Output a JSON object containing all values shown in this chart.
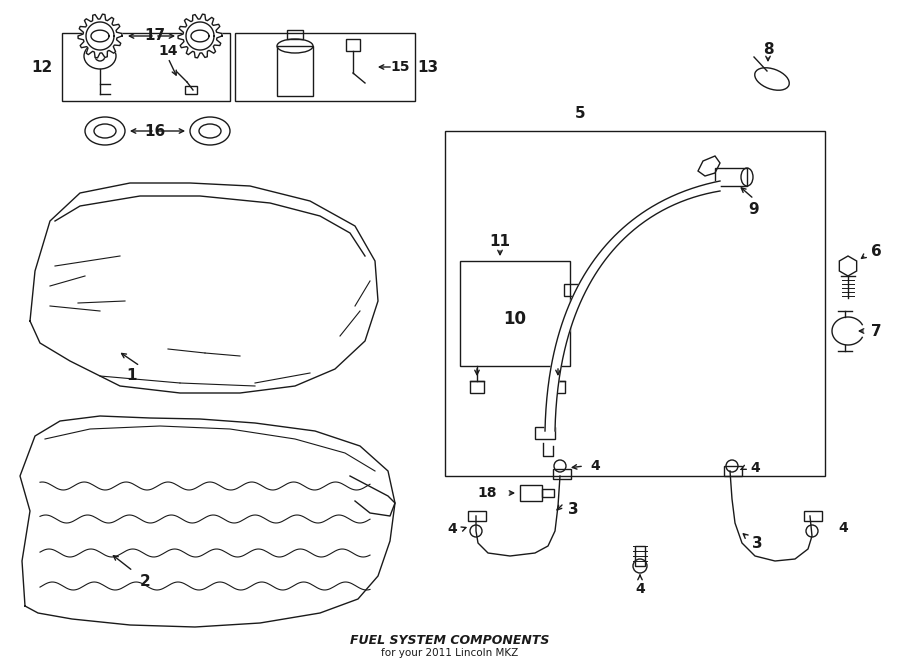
{
  "title": "FUEL SYSTEM COMPONENTS",
  "subtitle": "for your 2011 Lincoln MKZ",
  "bg_color": "#ffffff",
  "line_color": "#1a1a1a",
  "text_color": "#1a1a1a",
  "fig_width": 9.0,
  "fig_height": 6.61,
  "dpi": 100,
  "lw": 1.0,
  "label_fs": 11
}
